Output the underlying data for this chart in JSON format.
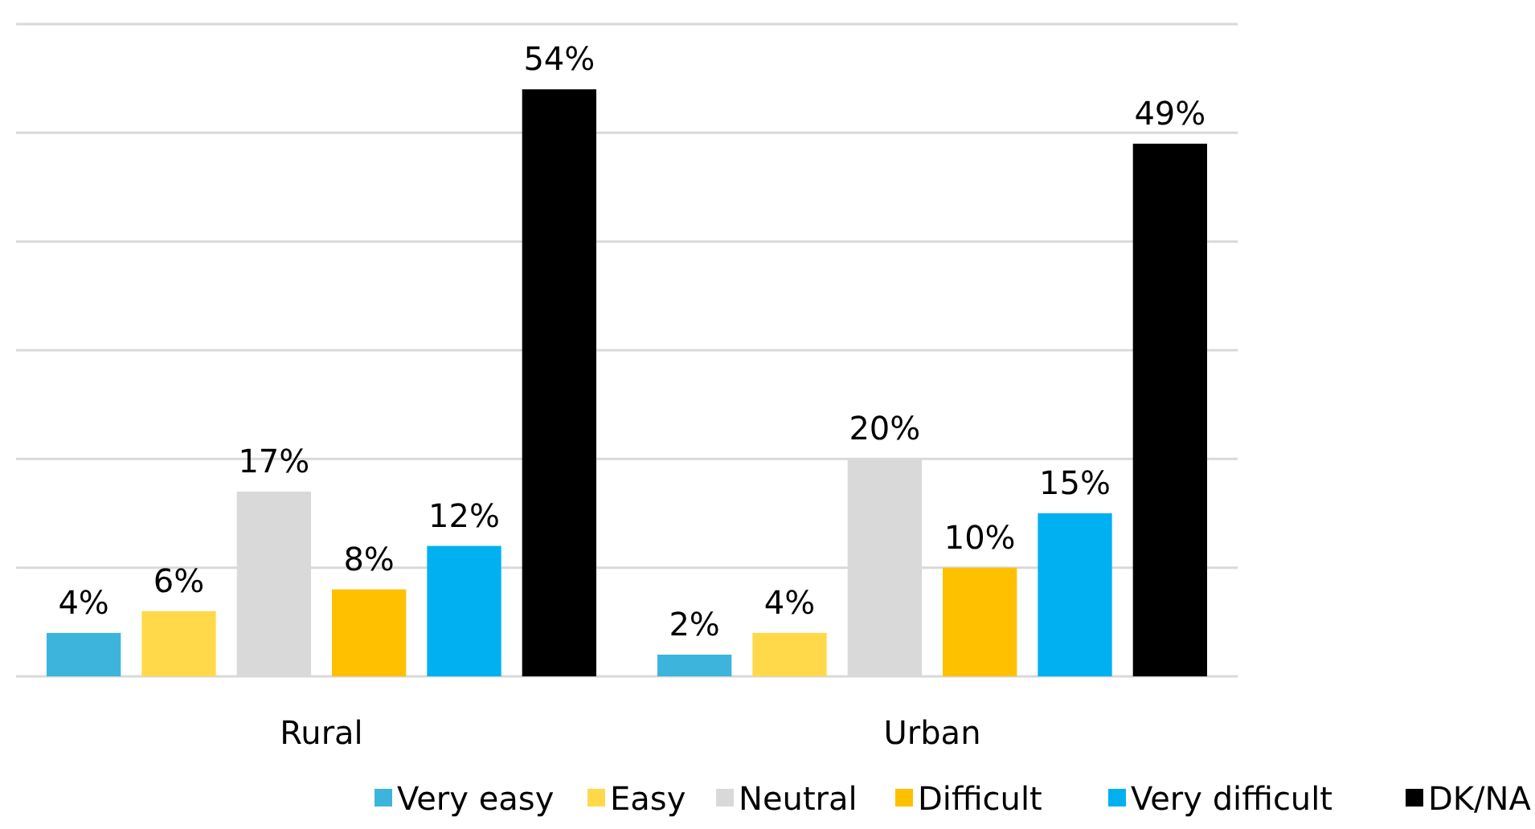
{
  "chart_data": {
    "type": "bar",
    "categories": [
      "Rural",
      "Urban"
    ],
    "series": [
      {
        "name": "Very easy",
        "color": "#3cb4dc",
        "values": [
          4,
          2
        ],
        "value_labels": [
          "4%",
          "2%"
        ]
      },
      {
        "name": "Easy",
        "color": "#ffd94a",
        "values": [
          6,
          4
        ],
        "value_labels": [
          "6%",
          "4%"
        ]
      },
      {
        "name": "Neutral",
        "color": "#d9d9d9",
        "values": [
          17,
          20
        ],
        "value_labels": [
          "17%",
          "20%"
        ]
      },
      {
        "name": "Difficult",
        "color": "#ffc000",
        "values": [
          8,
          10
        ],
        "value_labels": [
          "8%",
          "10%"
        ]
      },
      {
        "name": "Very difficult",
        "color": "#00b0f0",
        "values": [
          12,
          15
        ],
        "value_labels": [
          "12%",
          "15%"
        ]
      },
      {
        "name": "DK/NA",
        "color": "#000000",
        "values": [
          54,
          49
        ],
        "value_labels": [
          "54%",
          "49%"
        ]
      }
    ],
    "grid": "y",
    "legend": "bottom",
    "tick_labels": "x"
  }
}
